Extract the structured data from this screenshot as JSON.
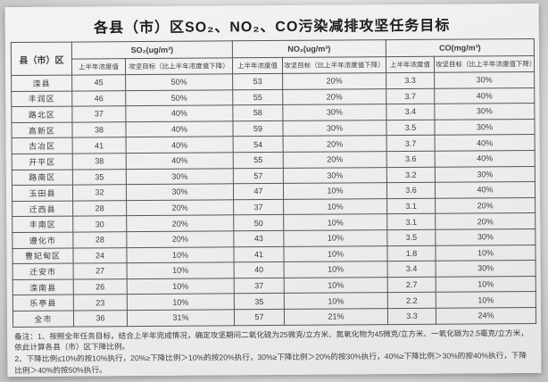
{
  "title": "各县（市）区SO₂、NO₂、CO污染减排攻坚任务目标",
  "table": {
    "corner_header": "县（市）区",
    "groups": [
      {
        "label": "SO₂(ug/m³)"
      },
      {
        "label": "NO₂(ug/m³)"
      },
      {
        "label": "CO(mg/m³)"
      }
    ],
    "sub_headers": {
      "value": "上半年浓度值",
      "goal": "攻坚目标（比上半年浓度值下降）"
    },
    "rows": [
      {
        "name": "滦县",
        "so2_value": "45",
        "so2_goal": "50%",
        "no2_value": "53",
        "no2_goal": "20%",
        "co_value": "3.3",
        "co_goal": "30%"
      },
      {
        "name": "丰润区",
        "so2_value": "46",
        "so2_goal": "50%",
        "no2_value": "55",
        "no2_goal": "20%",
        "co_value": "3.7",
        "co_goal": "40%"
      },
      {
        "name": "路北区",
        "so2_value": "37",
        "so2_goal": "40%",
        "no2_value": "58",
        "no2_goal": "30%",
        "co_value": "3.4",
        "co_goal": "30%"
      },
      {
        "name": "高新区",
        "so2_value": "38",
        "so2_goal": "40%",
        "no2_value": "59",
        "no2_goal": "30%",
        "co_value": "3.5",
        "co_goal": "30%"
      },
      {
        "name": "古冶区",
        "so2_value": "41",
        "so2_goal": "40%",
        "no2_value": "54",
        "no2_goal": "20%",
        "co_value": "3.7",
        "co_goal": "40%"
      },
      {
        "name": "开平区",
        "so2_value": "38",
        "so2_goal": "40%",
        "no2_value": "55",
        "no2_goal": "20%",
        "co_value": "3.6",
        "co_goal": "40%"
      },
      {
        "name": "路南区",
        "so2_value": "35",
        "so2_goal": "30%",
        "no2_value": "57",
        "no2_goal": "30%",
        "co_value": "3.2",
        "co_goal": "30%"
      },
      {
        "name": "玉田县",
        "so2_value": "32",
        "so2_goal": "30%",
        "no2_value": "47",
        "no2_goal": "10%",
        "co_value": "3.6",
        "co_goal": "40%"
      },
      {
        "name": "迁西县",
        "so2_value": "28",
        "so2_goal": "20%",
        "no2_value": "37",
        "no2_goal": "10%",
        "co_value": "3.1",
        "co_goal": "20%"
      },
      {
        "name": "丰南区",
        "so2_value": "30",
        "so2_goal": "20%",
        "no2_value": "50",
        "no2_goal": "10%",
        "co_value": "3.1",
        "co_goal": "20%"
      },
      {
        "name": "遵化市",
        "so2_value": "28",
        "so2_goal": "20%",
        "no2_value": "43",
        "no2_goal": "10%",
        "co_value": "3.5",
        "co_goal": "30%"
      },
      {
        "name": "曹妃甸区",
        "so2_value": "24",
        "so2_goal": "10%",
        "no2_value": "41",
        "no2_goal": "10%",
        "co_value": "1.8",
        "co_goal": "10%"
      },
      {
        "name": "迁安市",
        "so2_value": "27",
        "so2_goal": "10%",
        "no2_value": "40",
        "no2_goal": "10%",
        "co_value": "3.4",
        "co_goal": "30%"
      },
      {
        "name": "滦南县",
        "so2_value": "26",
        "so2_goal": "10%",
        "no2_value": "37",
        "no2_goal": "10%",
        "co_value": "2.7",
        "co_goal": "10%"
      },
      {
        "name": "乐亭县",
        "so2_value": "23",
        "so2_goal": "10%",
        "no2_value": "35",
        "no2_goal": "10%",
        "co_value": "2.2",
        "co_goal": "10%"
      },
      {
        "name": "全市",
        "so2_value": "36",
        "so2_goal": "31%",
        "no2_value": "57",
        "no2_goal": "21%",
        "co_value": "3.3",
        "co_goal": "24%"
      }
    ]
  },
  "notes": {
    "line1": "备注：1、按照全年任务目标，结合上半年完成情况，确定攻坚期间二氧化硫为25微克/立方米、氮氧化物为45微克/立方米、一氧化碳为2.5毫克/立方米，依此计算各县（市）区下降比例。",
    "line2": "2、下降比例≤10%的按10%执行，20%≥下降比例＞10%的按20%执行，30%≥下降比例＞20%的按30%执行，40%≥下降比例＞30%的按40%执行，下降比例＞40%的按50%执行。"
  }
}
